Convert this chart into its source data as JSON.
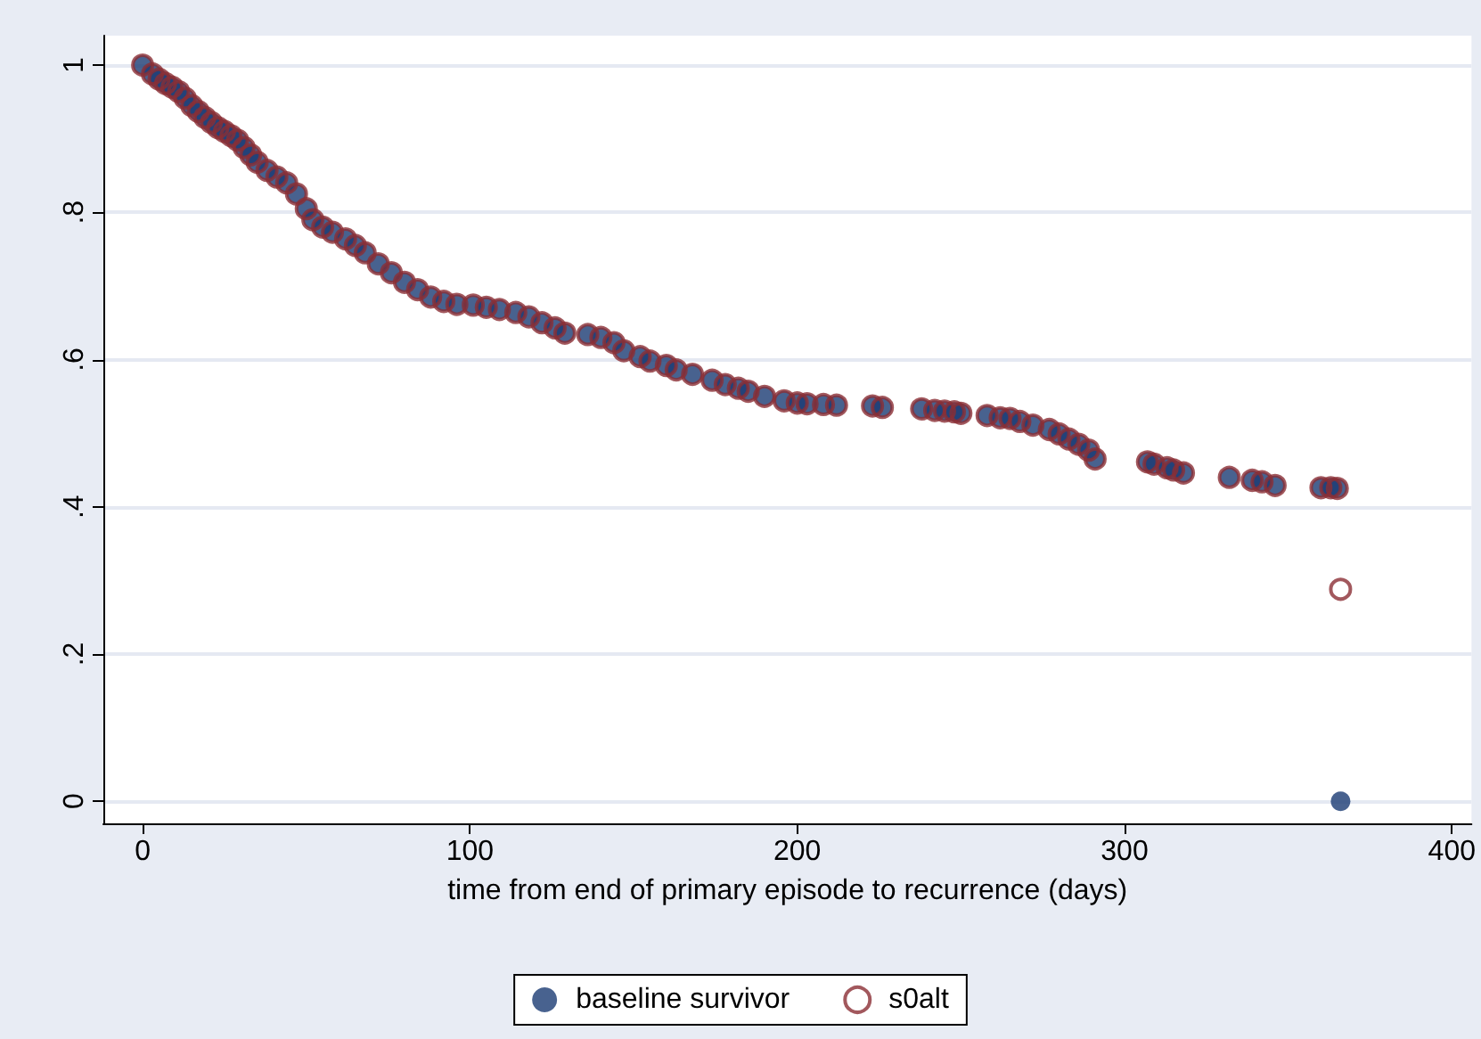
{
  "chart_data": {
    "type": "scatter",
    "xlabel": "time from end of primary episode to recurrence (days)",
    "x": [
      0,
      3,
      5,
      7,
      9,
      11,
      13,
      15,
      17,
      19,
      21,
      23,
      25,
      27,
      29,
      31,
      33,
      35,
      38,
      41,
      44,
      47,
      50,
      52,
      55,
      58,
      62,
      65,
      68,
      72,
      76,
      80,
      84,
      88,
      92,
      96,
      101,
      105,
      109,
      114,
      118,
      122,
      126,
      129,
      136,
      140,
      144,
      147,
      152,
      155,
      160,
      163,
      168,
      174,
      178,
      182,
      185,
      190,
      196,
      200,
      203,
      208,
      212,
      223,
      226,
      238,
      242,
      245,
      248,
      250,
      258,
      262,
      265,
      268,
      272,
      277,
      280,
      283,
      286,
      289,
      291,
      307,
      309,
      313,
      315,
      318,
      332,
      339,
      342,
      346,
      360,
      363,
      365,
      366
    ],
    "series": [
      {
        "name": "baseline survivor",
        "color": "#1a3b73",
        "values": [
          1,
          0.988,
          0.981,
          0.975,
          0.97,
          0.964,
          0.955,
          0.945,
          0.937,
          0.929,
          0.922,
          0.915,
          0.91,
          0.904,
          0.898,
          0.888,
          0.878,
          0.868,
          0.857,
          0.848,
          0.84,
          0.825,
          0.805,
          0.79,
          0.78,
          0.773,
          0.764,
          0.755,
          0.745,
          0.73,
          0.718,
          0.705,
          0.695,
          0.685,
          0.679,
          0.675,
          0.674,
          0.671,
          0.668,
          0.664,
          0.658,
          0.65,
          0.643,
          0.636,
          0.634,
          0.63,
          0.623,
          0.612,
          0.604,
          0.598,
          0.592,
          0.586,
          0.58,
          0.572,
          0.566,
          0.561,
          0.557,
          0.55,
          0.544,
          0.541,
          0.54,
          0.539,
          0.538,
          0.537,
          0.535,
          0.533,
          0.531,
          0.53,
          0.529,
          0.527,
          0.524,
          0.521,
          0.52,
          0.516,
          0.511,
          0.505,
          0.499,
          0.492,
          0.485,
          0.477,
          0.465,
          0.461,
          0.458,
          0.453,
          0.45,
          0.446,
          0.44,
          0.436,
          0.434,
          0.429,
          0.426,
          0.426,
          0.425,
          0
        ]
      },
      {
        "name": "s0alt",
        "color": "#8b2e35",
        "values": [
          1,
          0.988,
          0.981,
          0.975,
          0.97,
          0.964,
          0.955,
          0.945,
          0.937,
          0.929,
          0.922,
          0.915,
          0.91,
          0.904,
          0.898,
          0.888,
          0.878,
          0.868,
          0.857,
          0.848,
          0.84,
          0.825,
          0.805,
          0.79,
          0.78,
          0.773,
          0.764,
          0.755,
          0.745,
          0.73,
          0.718,
          0.705,
          0.695,
          0.685,
          0.679,
          0.675,
          0.674,
          0.671,
          0.668,
          0.664,
          0.658,
          0.65,
          0.643,
          0.636,
          0.634,
          0.63,
          0.623,
          0.612,
          0.604,
          0.598,
          0.592,
          0.586,
          0.58,
          0.572,
          0.566,
          0.561,
          0.557,
          0.55,
          0.544,
          0.541,
          0.54,
          0.539,
          0.538,
          0.537,
          0.535,
          0.533,
          0.531,
          0.53,
          0.529,
          0.527,
          0.524,
          0.521,
          0.52,
          0.516,
          0.511,
          0.505,
          0.499,
          0.492,
          0.485,
          0.477,
          0.465,
          0.461,
          0.458,
          0.453,
          0.45,
          0.446,
          0.44,
          0.436,
          0.434,
          0.429,
          0.426,
          0.426,
          0.425,
          0.288
        ]
      }
    ],
    "xlim": [
      -12,
      406
    ],
    "xticks": [
      0,
      100,
      200,
      300,
      400
    ],
    "ylim": [
      -0.03,
      1.04
    ],
    "yticks": [
      0,
      {
        "value": 0.2,
        "label": ".2"
      },
      {
        "value": 0.4,
        "label": ".4"
      },
      {
        "value": 0.6,
        "label": ".6"
      },
      {
        "value": 0.8,
        "label": ".8"
      },
      1
    ],
    "grid": "y",
    "legend": "bottom",
    "marker": "circle"
  }
}
